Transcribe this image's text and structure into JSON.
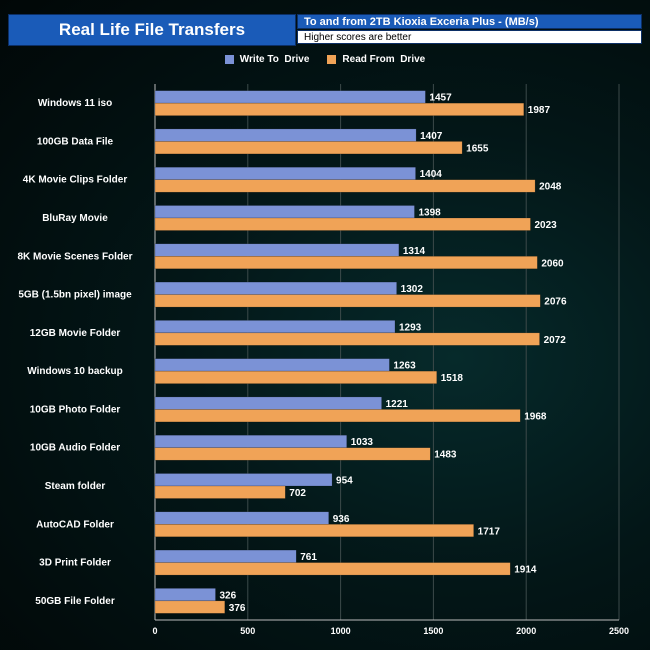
{
  "header": {
    "title": "Real Life File Transfers",
    "subtitle": "To and from 2TB Kioxia Exceria Plus - (MB/s)",
    "note": "Higher scores are better"
  },
  "colors": {
    "write": "#7b92d6",
    "read": "#f0a357",
    "header_bg": "#1a5bb8"
  },
  "chart_data": {
    "type": "bar",
    "orientation": "horizontal",
    "title": "Real Life File Transfers",
    "subtitle": "To and from 2TB Kioxia Exceria Plus - (MB/s)",
    "categories": [
      "Windows 11 iso",
      "100GB Data File",
      "4K Movie Clips Folder",
      "BluRay Movie",
      "8K Movie Scenes Folder",
      "5GB (1.5bn pixel) image",
      "12GB Movie Folder",
      "Windows 10 backup",
      "10GB Photo Folder",
      "10GB Audio Folder",
      "Steam folder",
      "AutoCAD Folder",
      "3D Print Folder",
      "50GB File Folder"
    ],
    "series": [
      {
        "name": "Write To  Drive",
        "color": "#7b92d6",
        "values": [
          1457,
          1407,
          1404,
          1398,
          1314,
          1302,
          1293,
          1263,
          1221,
          1033,
          954,
          936,
          761,
          326
        ]
      },
      {
        "name": "Read From  Drive",
        "color": "#f0a357",
        "values": [
          1987,
          1655,
          2048,
          2023,
          2060,
          2076,
          2072,
          1518,
          1968,
          1483,
          702,
          1717,
          1914,
          376
        ]
      }
    ],
    "xlim": [
      0,
      2500
    ],
    "xticks": [
      0,
      500,
      1000,
      1500,
      2000,
      2500
    ],
    "xlabel": "",
    "ylabel": "",
    "grid": true,
    "legend_position": "top-center"
  }
}
